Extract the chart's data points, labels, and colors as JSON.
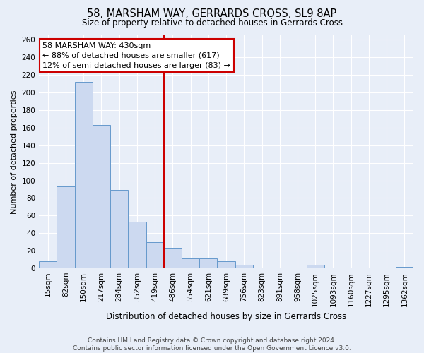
{
  "title": "58, MARSHAM WAY, GERRARDS CROSS, SL9 8AP",
  "subtitle": "Size of property relative to detached houses in Gerrards Cross",
  "xlabel": "Distribution of detached houses by size in Gerrards Cross",
  "ylabel": "Number of detached properties",
  "bar_labels": [
    "15sqm",
    "82sqm",
    "150sqm",
    "217sqm",
    "284sqm",
    "352sqm",
    "419sqm",
    "486sqm",
    "554sqm",
    "621sqm",
    "689sqm",
    "756sqm",
    "823sqm",
    "891sqm",
    "958sqm",
    "1025sqm",
    "1093sqm",
    "1160sqm",
    "1227sqm",
    "1295sqm",
    "1362sqm"
  ],
  "bar_values": [
    8,
    93,
    212,
    163,
    89,
    53,
    30,
    23,
    11,
    11,
    8,
    4,
    0,
    0,
    0,
    4,
    0,
    0,
    0,
    0,
    2
  ],
  "bar_color": "#ccd9f0",
  "bar_edge_color": "#6699cc",
  "vline_index": 6,
  "vline_color": "#cc0000",
  "annotation_title": "58 MARSHAM WAY: 430sqm",
  "annotation_line1": "← 88% of detached houses are smaller (617)",
  "annotation_line2": "12% of semi-detached houses are larger (83) →",
  "annotation_box_facecolor": "#ffffff",
  "annotation_box_edgecolor": "#cc0000",
  "ylim": [
    0,
    265
  ],
  "yticks": [
    0,
    20,
    40,
    60,
    80,
    100,
    120,
    140,
    160,
    180,
    200,
    220,
    240,
    260
  ],
  "footer_line1": "Contains HM Land Registry data © Crown copyright and database right 2024.",
  "footer_line2": "Contains public sector information licensed under the Open Government Licence v3.0.",
  "background_color": "#e8eef8",
  "grid_color": "#ffffff",
  "title_fontsize": 10.5,
  "subtitle_fontsize": 8.5,
  "xlabel_fontsize": 8.5,
  "ylabel_fontsize": 8,
  "tick_fontsize": 7.5,
  "annotation_fontsize": 8,
  "footer_fontsize": 6.5,
  "footer_color": "#444444"
}
